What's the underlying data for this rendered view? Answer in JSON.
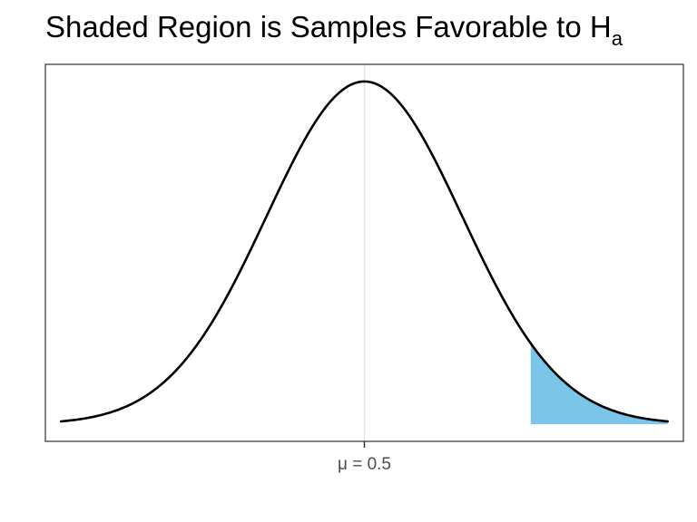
{
  "chart_data": {
    "type": "area",
    "title": "Shaded Region is Samples Favorable to H",
    "title_subscript": "a",
    "xlabel": "",
    "ylabel": "",
    "x_tick_labels": [
      "μ = 0.5"
    ],
    "curve": {
      "name": "",
      "distribution": "normal",
      "mean": 0.5,
      "sd": 1,
      "x_range_in_sd": [
        -3.1,
        3.1
      ]
    },
    "shaded_region": {
      "from_sd": 1.7,
      "to_sd": 3.1,
      "color": "#7AC5E8"
    },
    "center_line": {
      "at": 0.5,
      "color": "#E6E6E6"
    },
    "grid": false,
    "legend": "none",
    "colors": {
      "curve": "#000000",
      "panel_border": "#333333",
      "tick_text": "#4D4D4D"
    }
  }
}
